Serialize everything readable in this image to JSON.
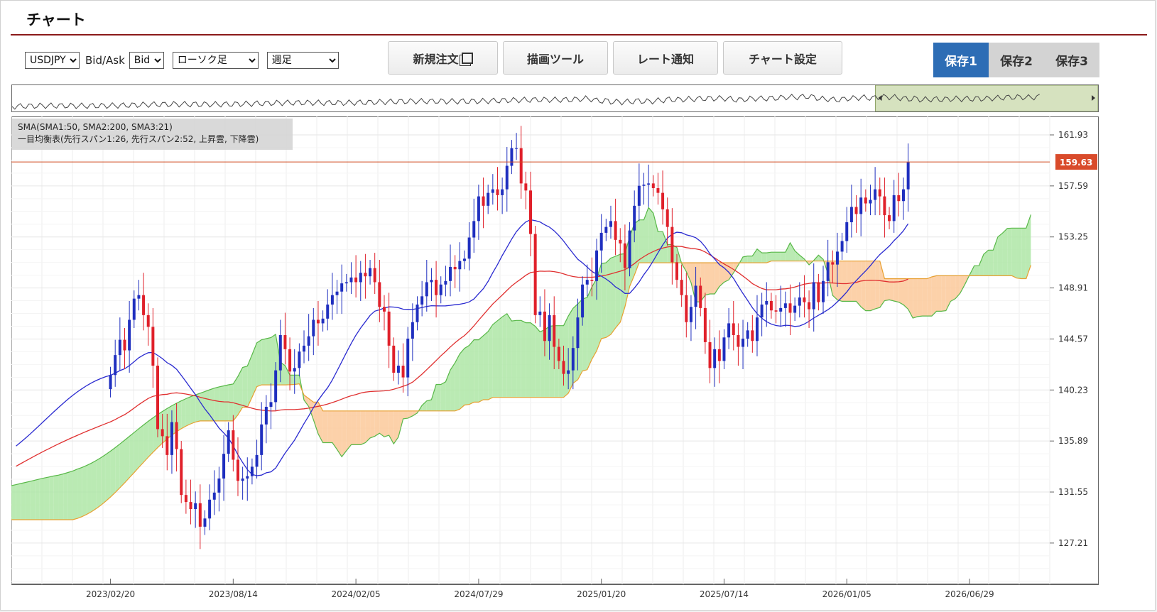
{
  "title": "チャート",
  "toolbar": {
    "pair": "USDJPY",
    "bidask_label": "Bid/Ask",
    "bidask": "Bid",
    "chart_style": "ローソク足",
    "timeframe": "週足"
  },
  "buttons": {
    "new_order": "新規注文",
    "draw_tools": "描画ツール",
    "rate_alert": "レート通知",
    "chart_settings": "チャート設定"
  },
  "saves": [
    "保存1",
    "保存2",
    "保存3"
  ],
  "indicators": {
    "sma": "SMA(SMA1:50, SMA2:200, SMA3:21)",
    "ichimoku": "一目均衡表(先行スパン1:26, 先行スパン2:52, 上昇雲, 下降雲)"
  },
  "colors": {
    "accent": "#2d6db5",
    "title_rule": "#8b1a1a",
    "bull_candle": "#1f2fbf",
    "bear_candle": "#e0202a",
    "sma_short": "#2a2ad0",
    "sma_mid": "#e03030",
    "sma_long": "#222222",
    "cloud_up": "#aee6a6",
    "cloud_down": "#fcc99a",
    "price_line": "#d04a20"
  },
  "chart_data": {
    "type": "candlestick",
    "xlabel": "",
    "ylabel": "",
    "ylim": [
      123.7,
      163.5
    ],
    "y_ticks": [
      "161.93",
      "157.59",
      "153.25",
      "148.91",
      "144.57",
      "140.23",
      "135.89",
      "131.55",
      "127.21"
    ],
    "x_ticks": [
      "2023/02/20",
      "2023/08/14",
      "2024/02/05",
      "2024/07/29",
      "2025/01/20",
      "2025/07/14",
      "2026/01/05",
      "2026/06/29"
    ],
    "x_range_weeks": [
      -21,
      199
    ],
    "current_price": "159.63",
    "closes": [
      141.5,
      143.2,
      144.5,
      143.6,
      146.2,
      148.0,
      148.3,
      146.6,
      145.6,
      142.3,
      136.9,
      136.3,
      134.7,
      137.5,
      135.2,
      131.3,
      130.7,
      130.1,
      130.6,
      128.6,
      129.3,
      130.9,
      131.5,
      132.7,
      134.8,
      136.8,
      134.3,
      132.5,
      132.7,
      132.9,
      133.7,
      134.7,
      137.3,
      138.8,
      139.2,
      141.9,
      144.9,
      143.7,
      141.8,
      142.1,
      143.5,
      144.0,
      144.8,
      146.2,
      145.9,
      146.3,
      147.5,
      148.3,
      148.6,
      149.3,
      149.4,
      149.8,
      149.4,
      150.2,
      149.9,
      150.6,
      149.4,
      147.3,
      146.9,
      144.0,
      141.7,
      142.3,
      141.3,
      144.6,
      146.0,
      147.5,
      148.2,
      149.4,
      149.6,
      148.3,
      149.2,
      149.5,
      150.7,
      150.5,
      151.2,
      151.4,
      153.2,
      154.6,
      156.7,
      155.9,
      157.0,
      157.3,
      156.8,
      157.3,
      159.3,
      160.8,
      160.8,
      157.8,
      157.2,
      153.5,
      146.6,
      146.9,
      144.4,
      146.6,
      143.9,
      142.7,
      141.6,
      141.9,
      143.8,
      146.4,
      149.2,
      149.6,
      149.5,
      152.1,
      153.6,
      154.1,
      154.6,
      153.0,
      152.7,
      150.6,
      153.8,
      155.9,
      157.6,
      157.7,
      157.8,
      157.4,
      157.0,
      155.6,
      154.1,
      151.1,
      149.6,
      148.3,
      146.0,
      147.3,
      149.1,
      147.2,
      144.3,
      142.1,
      143.7,
      142.7,
      144.7,
      145.9,
      144.9,
      143.9,
      144.6,
      145.3,
      144.4,
      146.4,
      147.5,
      147.8,
      147.0,
      146.9,
      147.2,
      147.6,
      146.8,
      147.4,
      148.1,
      147.7,
      147.1,
      149.4,
      147.7,
      149.5,
      151.1,
      150.9,
      152.0,
      152.9,
      154.5,
      155.8,
      155.2,
      156.6,
      156.1,
      156.4,
      157.3,
      156.7,
      155.1,
      154.6,
      156.8,
      156.3,
      157.3,
      159.6
    ],
    "sma_short_name": "SMA3:21",
    "sma_mid_name": "SMA1:50",
    "sma_long_name": "SMA2:200"
  }
}
